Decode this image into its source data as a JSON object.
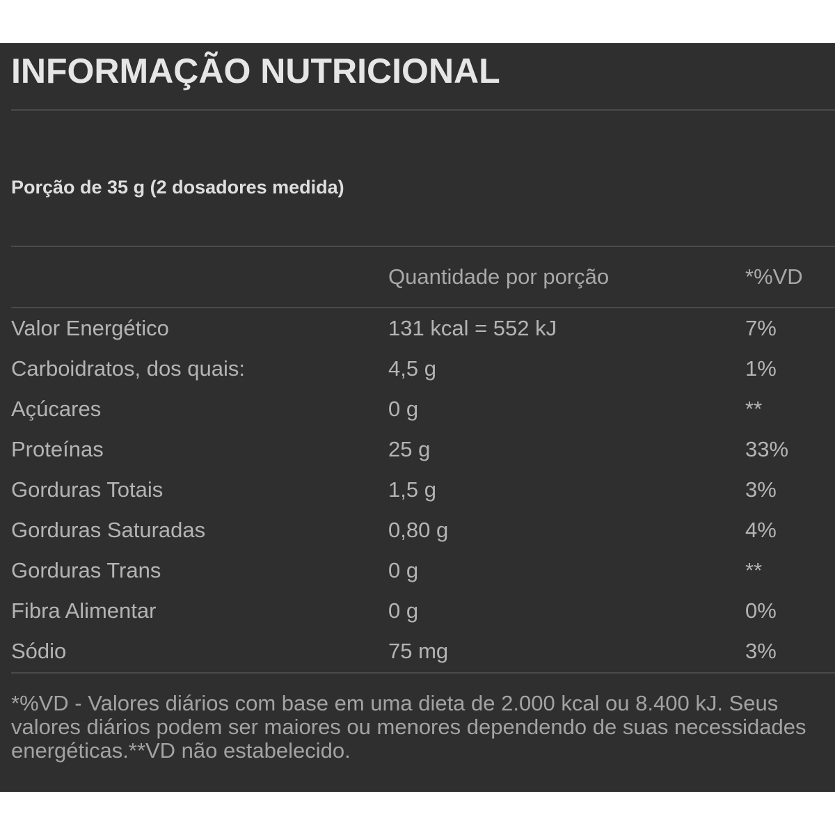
{
  "title": "INFORMAÇÃO NUTRICIONAL",
  "portion": "Porção de 35 g (2 dosadores medida)",
  "header": {
    "quantity": "Quantidade por porção",
    "dv": "*%VD"
  },
  "rows": [
    {
      "nutrient": "Valor Energético",
      "amount": "131 kcal = 552 kJ",
      "dv": "7%"
    },
    {
      "nutrient": "Carboidratos, dos quais:",
      "amount": "4,5 g",
      "dv": "1%"
    },
    {
      "nutrient": "Açúcares",
      "amount": "0 g",
      "dv": "**"
    },
    {
      "nutrient": "Proteínas",
      "amount": "25 g",
      "dv": "33%"
    },
    {
      "nutrient": "Gorduras Totais",
      "amount": "1,5 g",
      "dv": "3%"
    },
    {
      "nutrient": "Gorduras Saturadas",
      "amount": "0,80 g",
      "dv": "4%"
    },
    {
      "nutrient": "Gorduras Trans",
      "amount": "0 g",
      "dv": "**"
    },
    {
      "nutrient": "Fibra Alimentar",
      "amount": "0 g",
      "dv": "0%"
    },
    {
      "nutrient": "Sódio",
      "amount": "75 mg",
      "dv": "3%"
    }
  ],
  "footnote": "*%VD - Valores diários com base em uma dieta de 2.000 kcal ou 8.400 kJ. Seus valores diários podem ser maiores ou menores dependendo de suas necessidades energéticas.**VD não estabelecido.",
  "colors": {
    "background": "#2f2f2f",
    "title": "#e6e6e6",
    "text": "#b4b4b4",
    "rule": "#4a4a4a"
  }
}
